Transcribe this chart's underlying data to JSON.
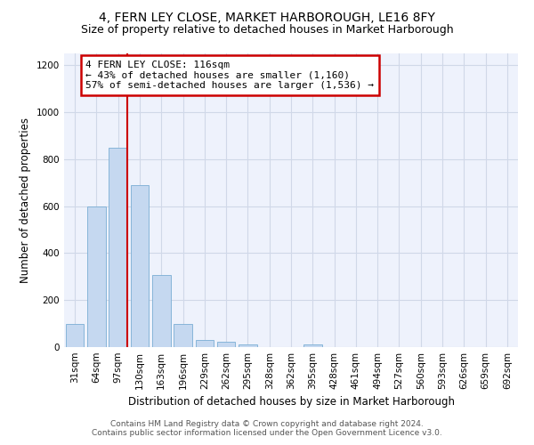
{
  "title": "4, FERN LEY CLOSE, MARKET HARBOROUGH, LE16 8FY",
  "subtitle": "Size of property relative to detached houses in Market Harborough",
  "xlabel": "Distribution of detached houses by size in Market Harborough",
  "ylabel": "Number of detached properties",
  "bar_values": [
    100,
    600,
    850,
    690,
    305,
    100,
    30,
    22,
    10,
    0,
    0,
    10,
    0,
    0,
    0,
    0,
    0,
    0,
    0,
    0,
    0
  ],
  "categories": [
    "31sqm",
    "64sqm",
    "97sqm",
    "130sqm",
    "163sqm",
    "196sqm",
    "229sqm",
    "262sqm",
    "295sqm",
    "328sqm",
    "362sqm",
    "395sqm",
    "428sqm",
    "461sqm",
    "494sqm",
    "527sqm",
    "560sqm",
    "593sqm",
    "626sqm",
    "659sqm",
    "692sqm"
  ],
  "bar_color": "#c5d8f0",
  "bar_edge_color": "#7aaed4",
  "vline_bar_index": 2,
  "annotation_text": "4 FERN LEY CLOSE: 116sqm\n← 43% of detached houses are smaller (1,160)\n57% of semi-detached houses are larger (1,536) →",
  "annotation_box_color": "#ffffff",
  "annotation_box_edge_color": "#cc0000",
  "vline_color": "#cc0000",
  "ylim": [
    0,
    1250
  ],
  "yticks": [
    0,
    200,
    400,
    600,
    800,
    1000,
    1200
  ],
  "grid_color": "#d0d8e8",
  "bg_color": "#eef2fc",
  "footer_line1": "Contains HM Land Registry data © Crown copyright and database right 2024.",
  "footer_line2": "Contains public sector information licensed under the Open Government Licence v3.0.",
  "title_fontsize": 10,
  "subtitle_fontsize": 9,
  "xlabel_fontsize": 8.5,
  "ylabel_fontsize": 8.5,
  "tick_fontsize": 7.5,
  "annotation_fontsize": 8,
  "footer_fontsize": 6.5
}
